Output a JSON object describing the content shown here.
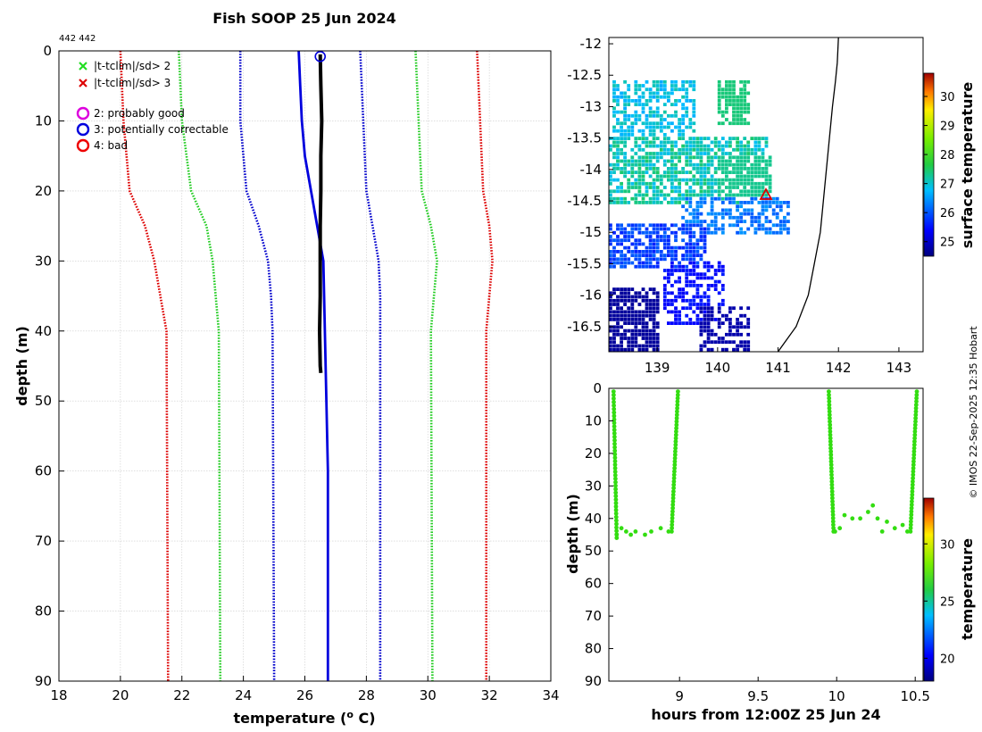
{
  "chart_data": [
    {
      "type": "line",
      "name": "profile",
      "title": "Fish SOOP 25 Jun 2024",
      "corner_label": "442 442",
      "xlabel": "temperature (",
      "xlabel_sup": "o",
      "xlabel_end": " C)",
      "ylabel": "depth (m)",
      "xlim": [
        18,
        34
      ],
      "ylim": [
        90,
        0
      ],
      "xticks": [
        18,
        20,
        22,
        24,
        26,
        28,
        30,
        32,
        34
      ],
      "yticks": [
        0,
        10,
        20,
        30,
        40,
        50,
        60,
        70,
        80,
        90
      ],
      "grid": true,
      "legend": [
        {
          "marker": "x",
          "color": "#22dd22",
          "label": "|t-tclim|/sd> 2"
        },
        {
          "marker": "x",
          "color": "#dd0000",
          "label": "|t-tclim|/sd> 3"
        },
        {
          "marker": "o",
          "color": "#dd00dd",
          "label": "2: probably good"
        },
        {
          "marker": "o",
          "color": "#0000dd",
          "label": "3: potentially correctable"
        },
        {
          "marker": "o",
          "color": "#ee0000",
          "label": "4: bad"
        }
      ],
      "series": [
        {
          "name": "clim-3sd-low",
          "color": "#dd0000",
          "style": "dotted",
          "points": [
            [
              20.0,
              0
            ],
            [
              20.1,
              10
            ],
            [
              20.3,
              20
            ],
            [
              20.8,
              25
            ],
            [
              21.1,
              30
            ],
            [
              21.3,
              35
            ],
            [
              21.5,
              40
            ],
            [
              21.55,
              90
            ]
          ]
        },
        {
          "name": "clim-2sd-low",
          "color": "#22cc22",
          "style": "dotted",
          "points": [
            [
              21.9,
              0
            ],
            [
              22.0,
              10
            ],
            [
              22.3,
              20
            ],
            [
              22.8,
              25
            ],
            [
              23.0,
              30
            ],
            [
              23.1,
              35
            ],
            [
              23.2,
              40
            ],
            [
              23.25,
              90
            ]
          ]
        },
        {
          "name": "clim-1sd-low",
          "color": "#0000cc",
          "style": "dotted",
          "points": [
            [
              23.9,
              0
            ],
            [
              23.9,
              10
            ],
            [
              24.1,
              20
            ],
            [
              24.5,
              25
            ],
            [
              24.8,
              30
            ],
            [
              24.9,
              35
            ],
            [
              24.95,
              40
            ],
            [
              25.0,
              90
            ]
          ]
        },
        {
          "name": "clim-1sd-high",
          "color": "#0000cc",
          "style": "dotted",
          "points": [
            [
              27.8,
              0
            ],
            [
              27.9,
              10
            ],
            [
              28.0,
              20
            ],
            [
              28.2,
              25
            ],
            [
              28.4,
              30
            ],
            [
              28.45,
              35
            ],
            [
              28.45,
              40
            ],
            [
              28.45,
              90
            ]
          ]
        },
        {
          "name": "clim-2sd-high",
          "color": "#22cc22",
          "style": "dotted",
          "points": [
            [
              29.6,
              0
            ],
            [
              29.7,
              10
            ],
            [
              29.8,
              20
            ],
            [
              30.1,
              25
            ],
            [
              30.3,
              30
            ],
            [
              30.2,
              35
            ],
            [
              30.1,
              40
            ],
            [
              30.15,
              90
            ]
          ]
        },
        {
          "name": "clim-3sd-high",
          "color": "#dd0000",
          "style": "dotted",
          "points": [
            [
              31.6,
              0
            ],
            [
              31.7,
              10
            ],
            [
              31.8,
              20
            ],
            [
              32.0,
              25
            ],
            [
              32.1,
              30
            ],
            [
              32.0,
              35
            ],
            [
              31.9,
              40
            ],
            [
              31.9,
              90
            ]
          ]
        },
        {
          "name": "climatology-mean",
          "color": "#0000dd",
          "style": "solid",
          "points": [
            [
              25.8,
              0
            ],
            [
              25.85,
              5
            ],
            [
              25.9,
              10
            ],
            [
              26.0,
              15
            ],
            [
              26.2,
              20
            ],
            [
              26.4,
              25
            ],
            [
              26.6,
              30
            ],
            [
              26.65,
              40
            ],
            [
              26.7,
              50
            ],
            [
              26.75,
              60
            ],
            [
              26.75,
              90
            ]
          ]
        },
        {
          "name": "observed-profile",
          "color": "#000000",
          "style": "solid",
          "points": [
            [
              26.5,
              0.5
            ],
            [
              26.52,
              5
            ],
            [
              26.55,
              10
            ],
            [
              26.52,
              15
            ],
            [
              26.52,
              20
            ],
            [
              26.5,
              25
            ],
            [
              26.5,
              30
            ],
            [
              26.5,
              35
            ],
            [
              26.48,
              40
            ],
            [
              26.5,
              45
            ],
            [
              26.52,
              46
            ]
          ]
        }
      ],
      "flag_marker": {
        "x": 26.5,
        "y": 0.8,
        "color": "#0000dd",
        "marker": "o"
      }
    },
    {
      "type": "heatmap",
      "name": "sst-map",
      "xlim": [
        138.2,
        143.4
      ],
      "ylim": [
        -16.9,
        -11.9
      ],
      "xticks": [
        139,
        140,
        141,
        142,
        143
      ],
      "yticks": [
        -12,
        -12.5,
        -13,
        -13.5,
        -14,
        -14.5,
        -15,
        -15.5,
        -16,
        -16.5
      ],
      "colorbar_label": "surface temperature",
      "colorbar_range": [
        24.5,
        30.8
      ],
      "colorbar_ticks": [
        25,
        26,
        27,
        28,
        29,
        30
      ],
      "marker": {
        "lon": 140.8,
        "lat": -14.4,
        "shape": "triangle",
        "color": "#dd0000"
      },
      "coast_lon": [
        141.0,
        141.3,
        141.5,
        141.6,
        141.7,
        141.75,
        141.8,
        141.85,
        141.9,
        141.95,
        141.98,
        142.0
      ],
      "coast_lat": [
        -16.9,
        -16.5,
        -16.0,
        -15.5,
        -15.0,
        -14.5,
        -14.0,
        -13.5,
        -13.0,
        -12.6,
        -12.3,
        -11.9
      ]
    },
    {
      "type": "scatter",
      "name": "depth-time",
      "xlabel": "hours from 12:00Z 25 Jun 24",
      "ylabel": "depth (m)",
      "xlim": [
        8.55,
        10.55
      ],
      "ylim": [
        90,
        0
      ],
      "xticks": [
        9,
        9.5,
        10,
        10.5
      ],
      "yticks": [
        0,
        10,
        20,
        30,
        40,
        50,
        60,
        70,
        80,
        90
      ],
      "colorbar_label": "temperature",
      "colorbar_range": [
        18,
        34
      ],
      "colorbar_ticks": [
        20,
        25,
        30
      ],
      "point_color": "#33dd11",
      "segments": [
        {
          "t0": 8.58,
          "t1": 8.6,
          "d0": 1,
          "d1": 46
        },
        {
          "t0": 8.95,
          "t1": 8.99,
          "d0": 44,
          "d1": 1
        },
        {
          "t0": 9.95,
          "t1": 9.98,
          "d0": 1,
          "d1": 44
        },
        {
          "t0": 10.47,
          "t1": 10.51,
          "d0": 44,
          "d1": 1
        }
      ],
      "bottom_points": [
        [
          8.6,
          45
        ],
        [
          8.63,
          43
        ],
        [
          8.66,
          44
        ],
        [
          8.69,
          45
        ],
        [
          8.72,
          44
        ],
        [
          8.78,
          45
        ],
        [
          8.82,
          44
        ],
        [
          8.88,
          43
        ],
        [
          8.93,
          44
        ]
      ],
      "bottom_points2": [
        [
          9.99,
          44
        ],
        [
          10.02,
          43
        ],
        [
          10.05,
          39
        ],
        [
          10.1,
          40
        ],
        [
          10.15,
          40
        ],
        [
          10.2,
          38
        ],
        [
          10.23,
          36
        ],
        [
          10.26,
          40
        ],
        [
          10.29,
          44
        ],
        [
          10.32,
          41
        ],
        [
          10.37,
          43
        ],
        [
          10.42,
          42
        ],
        [
          10.45,
          44
        ]
      ]
    }
  ],
  "credit": "© IMOS 22-Sep-2025 12:35 Hobart",
  "colors": {
    "accent": "#0000dd"
  }
}
